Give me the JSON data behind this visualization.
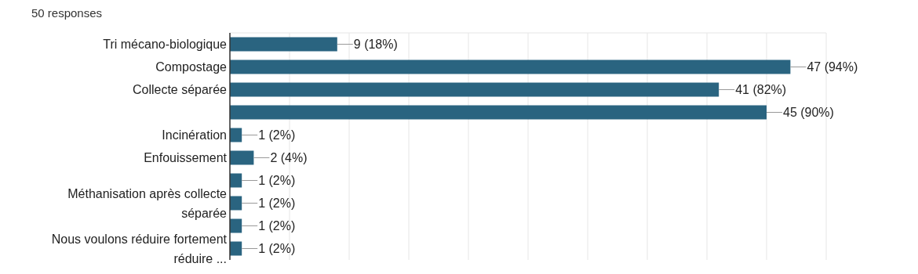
{
  "chart_data": {
    "type": "bar",
    "orientation": "horizontal",
    "subtitle": "50 responses",
    "categories": [
      "Tri mécano-biologique",
      "Compostage",
      "Collecte séparée",
      null,
      "Incinération",
      "Enfouissement",
      null,
      "Méthanisation après collecte séparée",
      null,
      "Nous voulons réduire fortement réduire ..."
    ],
    "values": [
      9,
      47,
      41,
      45,
      1,
      2,
      1,
      1,
      1,
      1
    ],
    "value_labels": [
      "9 (18%)",
      "47 (94%)",
      "41 (82%)",
      "45 (90%)",
      "1 (2%)",
      "2 (4%)",
      "1 (2%)",
      "1 (2%)",
      "1 (2%)",
      "1 (2%)"
    ],
    "color": "#2a6480",
    "xlim": [
      0,
      50
    ],
    "xticks": [
      {
        "value": 0,
        "label": null
      },
      {
        "value": 5,
        "label": null
      },
      {
        "value": 10,
        "label": null
      },
      {
        "value": 15,
        "label": null
      },
      {
        "value": 20,
        "label": null
      },
      {
        "value": 25,
        "label": null
      },
      {
        "value": 30,
        "label": null
      },
      {
        "value": 35,
        "label": null
      },
      {
        "value": 40,
        "label": null
      },
      {
        "value": 45,
        "label": null
      },
      {
        "value": 50,
        "label": null
      }
    ],
    "grid": "x"
  }
}
